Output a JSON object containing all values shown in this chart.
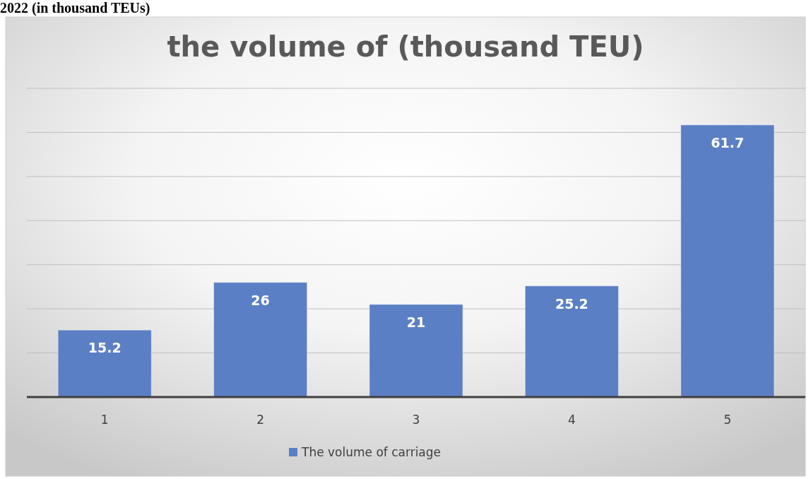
{
  "chart_data": {
    "type": "bar",
    "title": "the volume of (thousand TEU)",
    "annotations": [
      "2022 (in thousand TEUs)"
    ],
    "categories": [
      "1",
      "2",
      "3",
      "4",
      "5"
    ],
    "series": [
      {
        "name": "The volume of carriage",
        "color": "#5b7fc4",
        "values": [
          15.2,
          26,
          21,
          25.2,
          61.7
        ]
      }
    ],
    "ylim": [
      0,
      70
    ],
    "yticks": [
      {
        "value": 0,
        "label": null
      },
      {
        "value": 10,
        "label": null
      },
      {
        "value": 20,
        "label": null
      },
      {
        "value": 30,
        "label": null
      },
      {
        "value": 40,
        "label": null
      },
      {
        "value": 50,
        "label": null
      },
      {
        "value": 60,
        "label": null
      },
      {
        "value": 70,
        "label": null
      }
    ],
    "grid": "y",
    "data_labels": true,
    "legend": "bottom"
  }
}
